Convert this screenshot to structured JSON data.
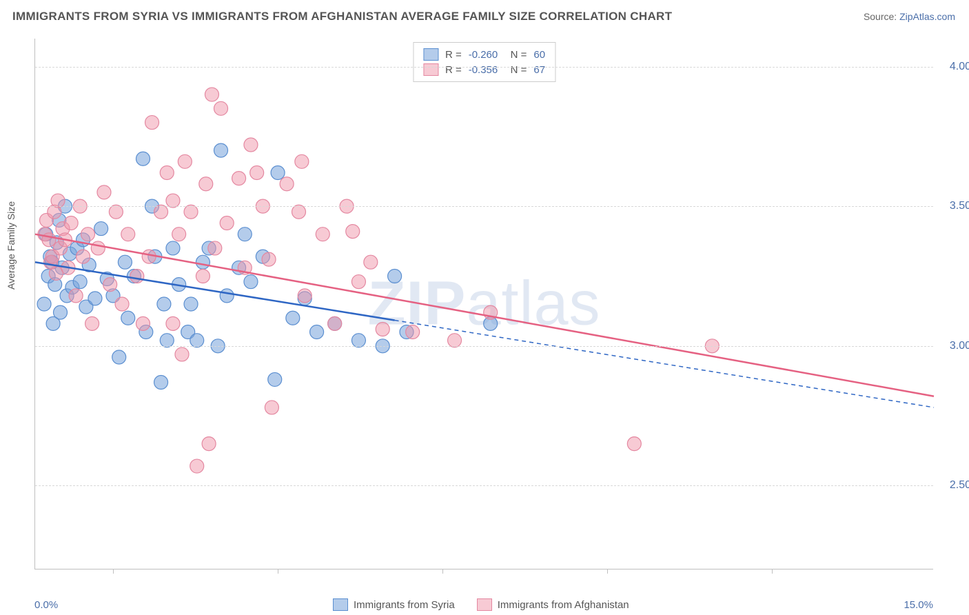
{
  "title": "IMMIGRANTS FROM SYRIA VS IMMIGRANTS FROM AFGHANISTAN AVERAGE FAMILY SIZE CORRELATION CHART",
  "source_prefix": "Source: ",
  "source_link": "ZipAtlas.com",
  "chart": {
    "type": "scatter",
    "ylabel": "Average Family Size",
    "xlim": [
      0.0,
      15.0
    ],
    "ylim": [
      2.2,
      4.1
    ],
    "x_min_label": "0.0%",
    "x_max_label": "15.0%",
    "y_ticks": [
      2.5,
      3.0,
      3.5,
      4.0
    ],
    "y_tick_labels": [
      "2.50",
      "3.00",
      "3.50",
      "4.00"
    ],
    "x_tick_positions": [
      1.3,
      4.05,
      6.8,
      9.55,
      12.3
    ],
    "grid_color": "#d8d8d8",
    "background_color": "#ffffff",
    "axis_color": "#bfbfbf",
    "tick_label_color": "#4a6ea9",
    "watermark_text_bold": "ZIP",
    "watermark_text_rest": "atlas",
    "watermark_color": "rgba(120,150,200,0.22)",
    "series": [
      {
        "name": "Immigrants from Syria",
        "legend_label": "Immigrants from Syria",
        "R": "-0.260",
        "N": "60",
        "marker_fill": "rgba(118,162,218,0.55)",
        "marker_stroke": "#5a8ed0",
        "marker_radius": 10,
        "line_color": "#2e66c4",
        "line_width": 2.5,
        "line_dash_after_x": 6.0,
        "line_start": [
          0.0,
          3.3
        ],
        "line_end": [
          15.0,
          2.78
        ],
        "points": [
          [
            0.15,
            3.15
          ],
          [
            0.18,
            3.4
          ],
          [
            0.22,
            3.25
          ],
          [
            0.25,
            3.32
          ],
          [
            0.28,
            3.3
          ],
          [
            0.3,
            3.08
          ],
          [
            0.33,
            3.22
          ],
          [
            0.36,
            3.37
          ],
          [
            0.4,
            3.45
          ],
          [
            0.42,
            3.12
          ],
          [
            0.45,
            3.28
          ],
          [
            0.5,
            3.5
          ],
          [
            0.53,
            3.18
          ],
          [
            0.58,
            3.33
          ],
          [
            0.62,
            3.21
          ],
          [
            0.7,
            3.35
          ],
          [
            0.75,
            3.23
          ],
          [
            0.8,
            3.38
          ],
          [
            0.85,
            3.14
          ],
          [
            0.9,
            3.29
          ],
          [
            1.0,
            3.17
          ],
          [
            1.1,
            3.42
          ],
          [
            1.2,
            3.24
          ],
          [
            1.3,
            3.18
          ],
          [
            1.4,
            2.96
          ],
          [
            1.5,
            3.3
          ],
          [
            1.55,
            3.1
          ],
          [
            1.65,
            3.25
          ],
          [
            1.8,
            3.67
          ],
          [
            1.85,
            3.05
          ],
          [
            1.95,
            3.5
          ],
          [
            2.0,
            3.32
          ],
          [
            2.1,
            2.87
          ],
          [
            2.15,
            3.15
          ],
          [
            2.2,
            3.02
          ],
          [
            2.3,
            3.35
          ],
          [
            2.4,
            3.22
          ],
          [
            2.55,
            3.05
          ],
          [
            2.6,
            3.15
          ],
          [
            2.7,
            3.02
          ],
          [
            2.8,
            3.3
          ],
          [
            2.9,
            3.35
          ],
          [
            3.05,
            3.0
          ],
          [
            3.1,
            3.7
          ],
          [
            3.2,
            3.18
          ],
          [
            3.4,
            3.28
          ],
          [
            3.5,
            3.4
          ],
          [
            3.6,
            3.23
          ],
          [
            3.8,
            3.32
          ],
          [
            4.0,
            2.88
          ],
          [
            4.05,
            3.62
          ],
          [
            4.3,
            3.1
          ],
          [
            4.5,
            3.17
          ],
          [
            4.7,
            3.05
          ],
          [
            5.0,
            3.08
          ],
          [
            5.4,
            3.02
          ],
          [
            5.8,
            3.0
          ],
          [
            6.0,
            3.25
          ],
          [
            6.2,
            3.05
          ],
          [
            7.6,
            3.08
          ]
        ]
      },
      {
        "name": "Immigrants from Afghanistan",
        "legend_label": "Immigrants from Afghanistan",
        "R": "-0.356",
        "N": "67",
        "marker_fill": "rgba(240,150,170,0.50)",
        "marker_stroke": "#e487a0",
        "marker_radius": 10,
        "line_color": "#e56182",
        "line_width": 2.5,
        "line_start": [
          0.0,
          3.4
        ],
        "line_end": [
          15.0,
          2.82
        ],
        "points": [
          [
            0.16,
            3.4
          ],
          [
            0.19,
            3.45
          ],
          [
            0.23,
            3.38
          ],
          [
            0.26,
            3.3
          ],
          [
            0.29,
            3.32
          ],
          [
            0.32,
            3.48
          ],
          [
            0.35,
            3.26
          ],
          [
            0.38,
            3.52
          ],
          [
            0.42,
            3.35
          ],
          [
            0.46,
            3.42
          ],
          [
            0.5,
            3.38
          ],
          [
            0.55,
            3.28
          ],
          [
            0.6,
            3.44
          ],
          [
            0.68,
            3.18
          ],
          [
            0.75,
            3.5
          ],
          [
            0.8,
            3.32
          ],
          [
            0.88,
            3.4
          ],
          [
            0.95,
            3.08
          ],
          [
            1.05,
            3.35
          ],
          [
            1.15,
            3.55
          ],
          [
            1.25,
            3.22
          ],
          [
            1.35,
            3.48
          ],
          [
            1.45,
            3.15
          ],
          [
            1.55,
            3.4
          ],
          [
            1.7,
            3.25
          ],
          [
            1.8,
            3.08
          ],
          [
            1.9,
            3.32
          ],
          [
            1.95,
            3.8
          ],
          [
            2.1,
            3.48
          ],
          [
            2.2,
            3.62
          ],
          [
            2.3,
            3.08
          ],
          [
            2.3,
            3.52
          ],
          [
            2.4,
            3.4
          ],
          [
            2.45,
            2.97
          ],
          [
            2.5,
            3.66
          ],
          [
            2.6,
            3.48
          ],
          [
            2.7,
            2.57
          ],
          [
            2.8,
            3.25
          ],
          [
            2.85,
            3.58
          ],
          [
            2.9,
            2.65
          ],
          [
            2.95,
            3.9
          ],
          [
            3.0,
            3.35
          ],
          [
            3.1,
            3.85
          ],
          [
            3.2,
            3.44
          ],
          [
            3.4,
            3.6
          ],
          [
            3.5,
            3.28
          ],
          [
            3.6,
            3.72
          ],
          [
            3.7,
            3.62
          ],
          [
            3.8,
            3.5
          ],
          [
            3.9,
            3.31
          ],
          [
            3.95,
            2.78
          ],
          [
            4.2,
            3.58
          ],
          [
            4.4,
            3.48
          ],
          [
            4.45,
            3.66
          ],
          [
            4.5,
            3.18
          ],
          [
            4.8,
            3.4
          ],
          [
            5.0,
            3.08
          ],
          [
            5.2,
            3.5
          ],
          [
            5.3,
            3.41
          ],
          [
            5.4,
            3.23
          ],
          [
            5.6,
            3.3
          ],
          [
            5.8,
            3.06
          ],
          [
            6.3,
            3.05
          ],
          [
            7.0,
            3.02
          ],
          [
            7.6,
            3.12
          ],
          [
            10.0,
            2.65
          ],
          [
            11.3,
            3.0
          ]
        ]
      }
    ]
  }
}
